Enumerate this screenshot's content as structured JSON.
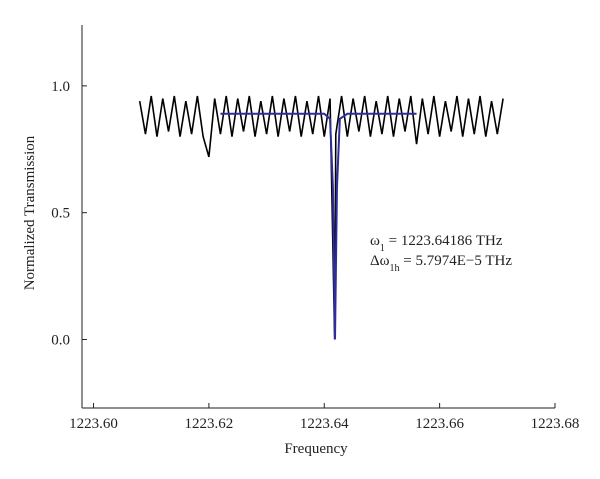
{
  "chart_data": {
    "type": "line",
    "x_label": "Frequency",
    "y_label": "Normalized Transmission",
    "xlim": [
      1223.598,
      1223.68
    ],
    "ylim": [
      -0.27,
      1.24
    ],
    "xticks": [
      {
        "value": 1223.6,
        "label": "1223.60"
      },
      {
        "value": 1223.62,
        "label": "1223.62"
      },
      {
        "value": 1223.64,
        "label": "1223.64"
      },
      {
        "value": 1223.66,
        "label": "1223.66"
      },
      {
        "value": 1223.68,
        "label": "1223.68"
      }
    ],
    "yticks": [
      {
        "value": 0.0,
        "label": "0.0"
      },
      {
        "value": 0.5,
        "label": "0.5"
      },
      {
        "value": 1.0,
        "label": "1.0"
      }
    ],
    "series": [
      {
        "color": "#000000",
        "x": [
          1223.608,
          1223.609,
          1223.61,
          1223.611,
          1223.612,
          1223.613,
          1223.614,
          1223.615,
          1223.616,
          1223.617,
          1223.618,
          1223.619,
          1223.62,
          1223.621,
          1223.622,
          1223.623,
          1223.624,
          1223.625,
          1223.626,
          1223.627,
          1223.628,
          1223.629,
          1223.63,
          1223.631,
          1223.632,
          1223.633,
          1223.634,
          1223.635,
          1223.636,
          1223.637,
          1223.638,
          1223.639,
          1223.64,
          1223.641,
          1223.6418,
          1223.642,
          1223.643,
          1223.644,
          1223.645,
          1223.646,
          1223.647,
          1223.648,
          1223.649,
          1223.65,
          1223.651,
          1223.652,
          1223.653,
          1223.654,
          1223.655,
          1223.656,
          1223.657,
          1223.658,
          1223.659,
          1223.66,
          1223.661,
          1223.662,
          1223.663,
          1223.664,
          1223.665,
          1223.666,
          1223.667,
          1223.668,
          1223.669,
          1223.67,
          1223.671
        ],
        "values": [
          0.94,
          0.81,
          0.96,
          0.8,
          0.95,
          0.82,
          0.96,
          0.8,
          0.94,
          0.81,
          0.96,
          0.8,
          0.72,
          0.95,
          0.81,
          0.96,
          0.8,
          0.95,
          0.82,
          0.96,
          0.8,
          0.94,
          0.81,
          0.96,
          0.8,
          0.95,
          0.82,
          0.96,
          0.8,
          0.94,
          0.81,
          0.96,
          0.8,
          0.95,
          0.0,
          0.81,
          0.96,
          0.8,
          0.95,
          0.82,
          0.96,
          0.8,
          0.94,
          0.81,
          0.96,
          0.8,
          0.95,
          0.82,
          0.96,
          0.77,
          0.95,
          0.81,
          0.96,
          0.8,
          0.94,
          0.82,
          0.96,
          0.8,
          0.95,
          0.81,
          0.96,
          0.8,
          0.94,
          0.81,
          0.95
        ]
      },
      {
        "color": "#2e2e9a",
        "x": [
          1223.622,
          1223.64,
          1223.641,
          1223.6415,
          1223.64186,
          1223.6422,
          1223.6427,
          1223.644,
          1223.656
        ],
        "values": [
          0.89,
          0.89,
          0.87,
          0.6,
          0.0,
          0.6,
          0.87,
          0.89,
          0.89
        ]
      }
    ],
    "annotations": [
      {
        "symbol": "ω",
        "sub": "1",
        "text": " = 1223.64186 THz"
      },
      {
        "symbol": "Δω",
        "sub": "1h",
        "text": " = 5.7974E−5 THz"
      }
    ]
  }
}
